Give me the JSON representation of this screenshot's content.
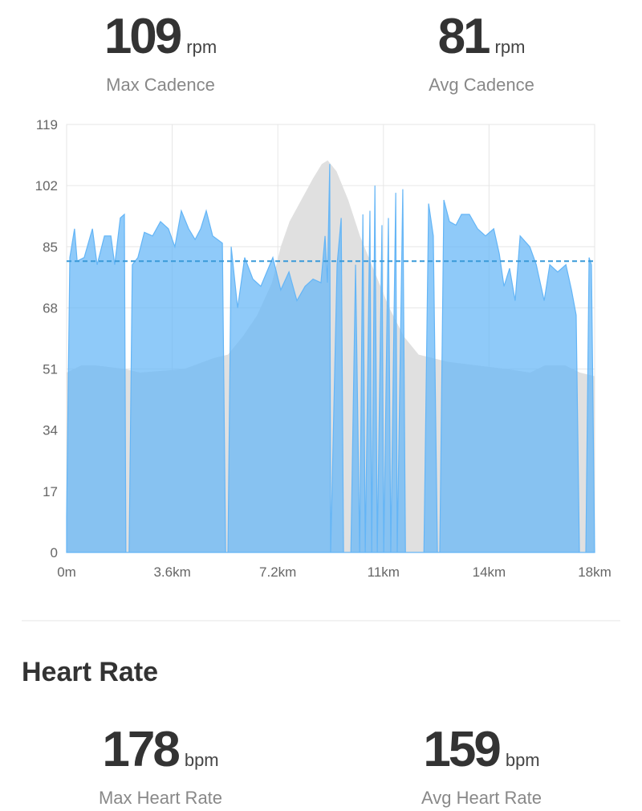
{
  "stats_top": [
    {
      "value": 109,
      "unit": "rpm",
      "label": "Max Cadence"
    },
    {
      "value": 81,
      "unit": "rpm",
      "label": "Avg Cadence"
    }
  ],
  "chart_data": {
    "type": "area",
    "xlim": [
      0,
      18
    ],
    "xticks": [
      {
        "value": 0,
        "label": "0m"
      },
      {
        "value": 3.6,
        "label": "3.6km"
      },
      {
        "value": 7.2,
        "label": "7.2km"
      },
      {
        "value": 10.8,
        "label": "11km"
      },
      {
        "value": 14.4,
        "label": "14km"
      },
      {
        "value": 18,
        "label": "18km"
      }
    ],
    "ylim": [
      0,
      119
    ],
    "yticks": [
      0,
      17,
      34,
      51,
      68,
      85,
      102,
      119
    ],
    "grid": true,
    "series": [
      {
        "color": "#e0e0e0",
        "x": [
          0,
          0.5,
          1,
          2,
          2.5,
          4,
          5,
          5.5,
          6,
          6.5,
          7,
          7.3,
          7.6,
          8,
          8.4,
          8.7,
          8.9,
          9.2,
          9.6,
          10,
          10.5,
          11,
          11.5,
          12,
          12.5,
          13,
          14,
          15,
          15.8,
          16.3,
          17,
          17.5,
          18
        ],
        "values": [
          50,
          52,
          52,
          51,
          50,
          51,
          54,
          55,
          60,
          66,
          75,
          85,
          92,
          98,
          104,
          108,
          109,
          106,
          98,
          88,
          78,
          68,
          60,
          55,
          54,
          53,
          52,
          51,
          50,
          52,
          52,
          50,
          49
        ]
      },
      {
        "color": "#64b5f6",
        "x": [
          0,
          0.11,
          0.27,
          0.36,
          0.6,
          0.88,
          1.04,
          1.29,
          1.51,
          1.64,
          1.83,
          1.97,
          2.02,
          2.13,
          2.24,
          2.43,
          2.65,
          2.93,
          3.2,
          3.47,
          3.69,
          3.91,
          4.16,
          4.38,
          4.57,
          4.76,
          4.98,
          5.31,
          5.42,
          5.5,
          5.61,
          5.83,
          6.07,
          6.35,
          6.62,
          7.03,
          7.3,
          7.58,
          7.85,
          8.13,
          8.4,
          8.67,
          8.81,
          8.89,
          8.97,
          9.0,
          9.22,
          9.36,
          9.44,
          9.69,
          9.85,
          9.99,
          10.1,
          10.18,
          10.34,
          10.4,
          10.51,
          10.59,
          10.75,
          10.81,
          10.97,
          11.05,
          11.22,
          11.27,
          11.46,
          11.55,
          12.18,
          12.34,
          12.5,
          12.64,
          12.72,
          12.86,
          13.05,
          13.27,
          13.46,
          13.73,
          14.01,
          14.28,
          14.56,
          14.75,
          14.91,
          15.1,
          15.29,
          15.46,
          15.79,
          16.01,
          16.28,
          16.47,
          16.74,
          17.02,
          17.21,
          17.37,
          17.48,
          17.7,
          17.81,
          17.89,
          18.0
        ],
        "values": [
          10,
          82,
          90,
          81,
          82,
          90,
          80,
          88,
          88,
          80,
          93,
          94,
          0,
          0,
          80,
          82,
          89,
          88,
          92,
          90,
          85,
          95,
          90,
          87,
          90,
          95,
          88,
          86,
          0,
          0,
          85,
          68,
          82,
          76,
          74,
          82,
          73,
          78,
          70,
          74,
          76,
          75,
          88,
          75,
          108,
          0,
          80,
          93,
          0,
          0,
          80,
          0,
          94,
          0,
          95,
          0,
          102,
          0,
          91,
          0,
          93,
          0,
          100,
          0,
          101,
          0,
          0,
          97,
          88,
          0,
          0,
          98,
          92,
          91,
          94,
          94,
          90,
          88,
          90,
          83,
          74,
          79,
          70,
          88,
          85,
          80,
          70,
          80,
          78,
          80,
          73,
          66,
          0,
          0,
          82,
          80,
          0
        ]
      }
    ]
  },
  "section_title": "Heart Rate",
  "stats_bottom": [
    {
      "value": 178,
      "unit": "bpm",
      "label": "Max Heart Rate"
    },
    {
      "value": 159,
      "unit": "bpm",
      "label": "Avg Heart Rate"
    }
  ]
}
